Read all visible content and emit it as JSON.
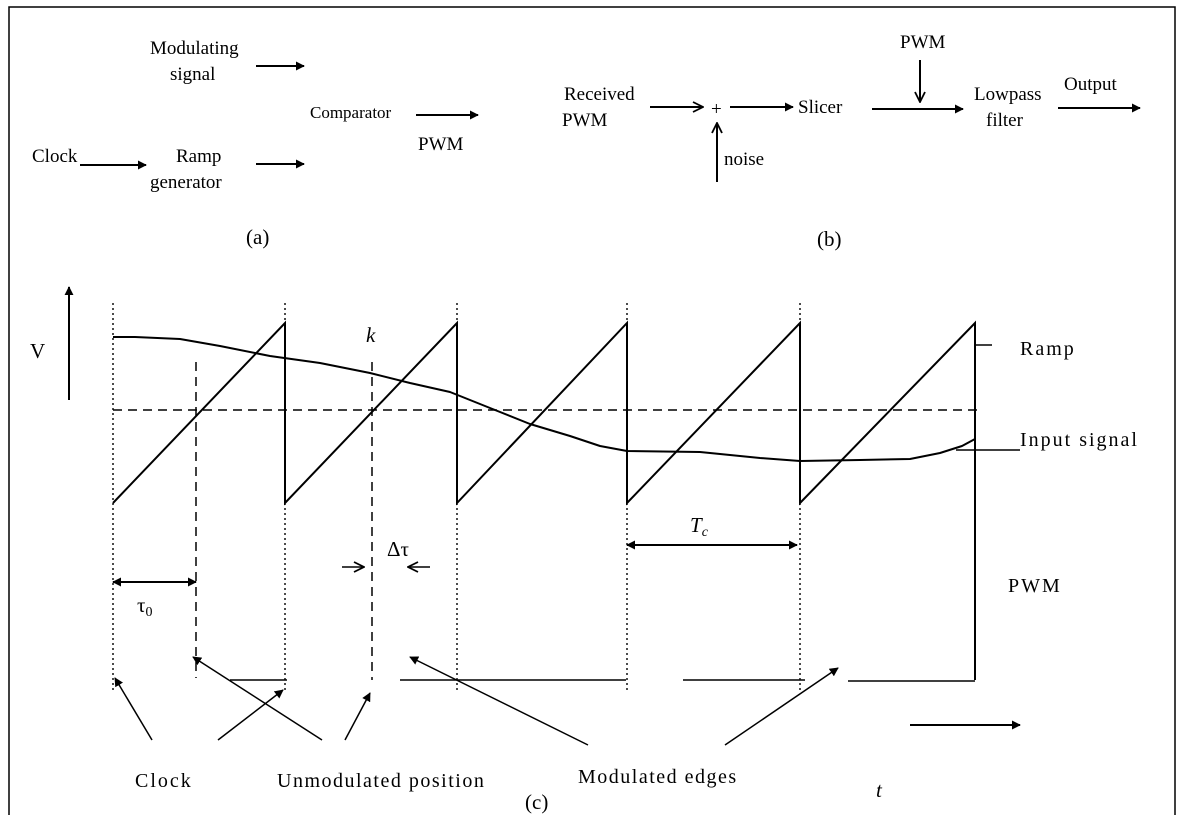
{
  "diagram_a": {
    "modulating_signal_line1": "Modulating",
    "modulating_signal_line2": "signal",
    "clock": "Clock",
    "ramp_generator_line1": "Ramp",
    "ramp_generator_line2": "generator",
    "comparator": "Comparator",
    "pwm": "PWM",
    "caption": "(a)"
  },
  "diagram_b": {
    "received_pwm_line1": "Received",
    "received_pwm_line2": "PWM",
    "plus": "+",
    "noise": "noise",
    "slicer": "Slicer",
    "pwm": "PWM",
    "lowpass_filter_line1": "Lowpass",
    "lowpass_filter_line2": "filter",
    "output": "Output",
    "caption": "(b)"
  },
  "diagram_c": {
    "v_axis": "V",
    "k_label": "k",
    "ramp": "Ramp",
    "input_signal": "Input signal",
    "delta_tau": "Δτ",
    "tc": "T",
    "tc_sub": "c",
    "pwm": "PWM",
    "tau0": "τ",
    "tau0_sub": "0",
    "clock": "Clock",
    "unmodulated_position": "Unmodulated position",
    "modulated_edges": "Modulated edges",
    "t_axis": "t",
    "caption": "(c)"
  }
}
